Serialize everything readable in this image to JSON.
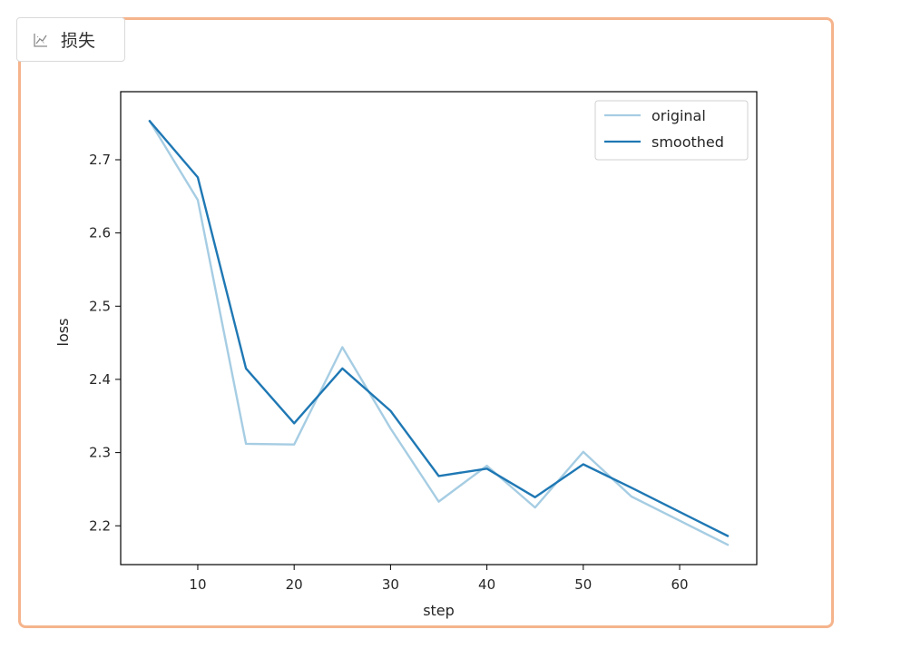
{
  "panel": {
    "tab_icon": "line-chart-icon",
    "tab_label": "损失",
    "border_color": "#f5b48c"
  },
  "chart_data": {
    "type": "line",
    "title": "",
    "xlabel": "step",
    "ylabel": "loss",
    "xlim": [
      2,
      68
    ],
    "ylim": [
      2.147,
      2.793
    ],
    "xticks": [
      10,
      20,
      30,
      40,
      50,
      60
    ],
    "yticks": [
      2.2,
      2.3,
      2.4,
      2.5,
      2.6,
      2.7
    ],
    "grid": false,
    "legend_position": "top-right",
    "series": [
      {
        "name": "original",
        "color": "#a6cde3",
        "x": [
          5,
          10,
          15,
          20,
          25,
          30,
          35,
          40,
          45,
          50,
          55,
          60,
          65
        ],
        "y": [
          2.753,
          2.645,
          2.312,
          2.311,
          2.444,
          2.333,
          2.233,
          2.282,
          2.225,
          2.301,
          2.24,
          2.207,
          2.174
        ]
      },
      {
        "name": "smoothed",
        "color": "#1f78b4",
        "x": [
          5,
          10,
          15,
          20,
          25,
          30,
          35,
          40,
          45,
          50,
          55,
          60,
          65
        ],
        "y": [
          2.753,
          2.676,
          2.415,
          2.34,
          2.415,
          2.357,
          2.268,
          2.278,
          2.239,
          2.284,
          2.252,
          2.219,
          2.186
        ]
      }
    ]
  }
}
